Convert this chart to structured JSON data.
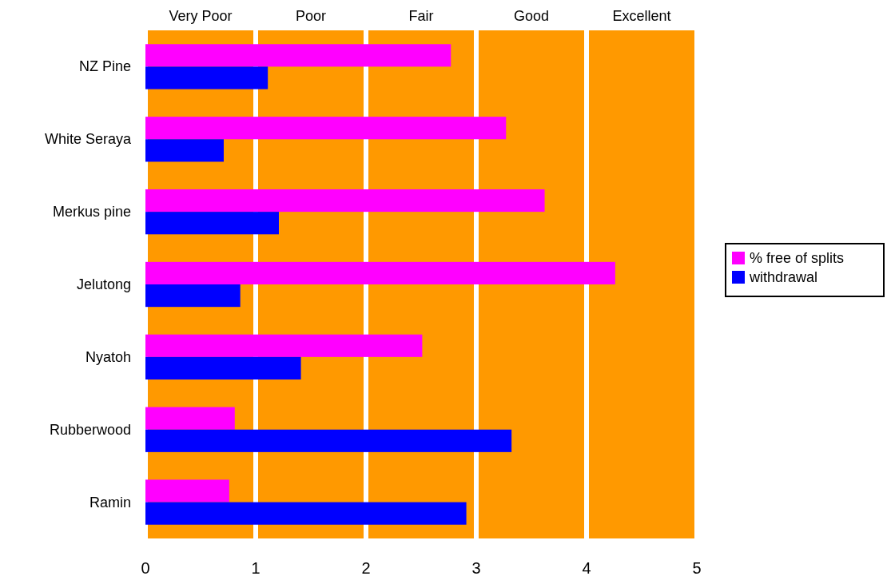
{
  "chart_data": {
    "type": "bar",
    "orientation": "horizontal",
    "categories": [
      "NZ Pine",
      "White Seraya",
      "Merkus pine",
      "Jelutong",
      "Nyatoh",
      "Rubberwood",
      "Ramin"
    ],
    "series": [
      {
        "name": "% free of splits",
        "color": "#ff00ff",
        "values": [
          2.77,
          3.27,
          3.62,
          4.26,
          2.51,
          0.81,
          0.76
        ]
      },
      {
        "name": "withdrawal",
        "color": "#0000ff",
        "values": [
          1.11,
          0.71,
          1.21,
          0.86,
          1.41,
          3.32,
          2.91
        ]
      }
    ],
    "xlim": [
      0,
      5
    ],
    "xticks": [
      0,
      1,
      2,
      3,
      4,
      5
    ],
    "bands": [
      {
        "axis": "x",
        "from": 0,
        "to": 1,
        "label": "Very Poor",
        "color": "#ff9900"
      },
      {
        "axis": "x",
        "from": 1,
        "to": 2,
        "label": "Poor",
        "color": "#ff9900"
      },
      {
        "axis": "x",
        "from": 2,
        "to": 3,
        "label": "Fair",
        "color": "#ff9900"
      },
      {
        "axis": "x",
        "from": 3,
        "to": 4,
        "label": "Good",
        "color": "#ff9900"
      },
      {
        "axis": "x",
        "from": 4,
        "to": 5,
        "label": "Excellent",
        "color": "#ff9900"
      }
    ],
    "legend": "right",
    "grid": false
  }
}
